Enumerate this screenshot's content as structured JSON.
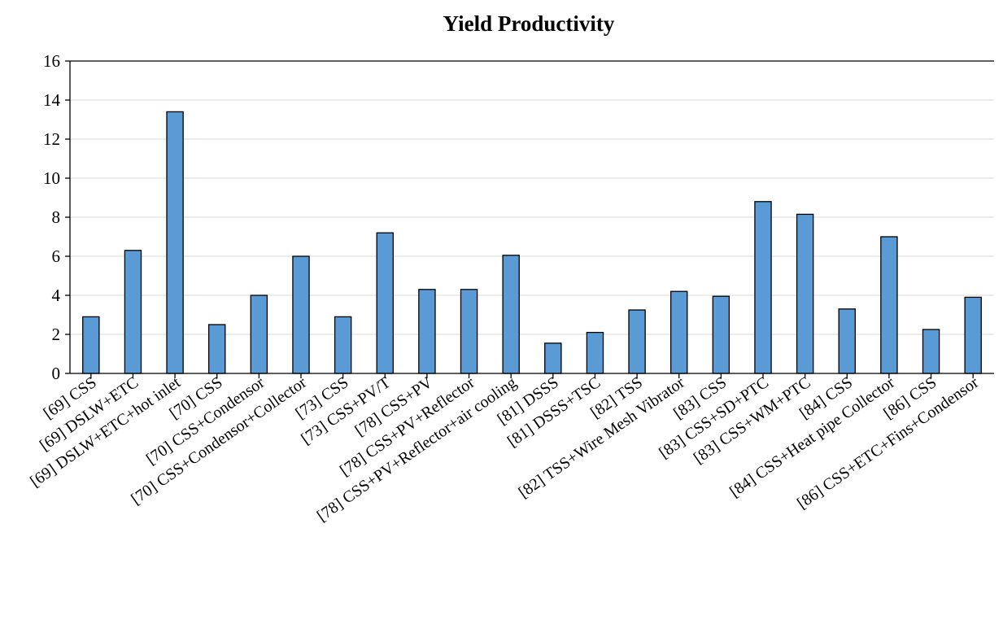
{
  "chart_data": {
    "type": "bar",
    "title": "Yield Productivity",
    "xlabel": "",
    "ylabel": "",
    "ylim": [
      0,
      16
    ],
    "yticks": [
      0,
      2,
      4,
      6,
      8,
      10,
      12,
      14,
      16
    ],
    "grid": "horizontal",
    "legend": "none",
    "bar_color": "#5b9bd5",
    "categories": [
      "[69] CSS",
      "[69] DSLW+ETC",
      "[69] DSLW+ETC+hot inlet",
      "[70] CSS",
      "[70] CSS+Condensor",
      "[70] CSS+Condensor+Collector",
      "[73] CSS",
      "[73] CSS+PV/T",
      "[78] CSS+PV",
      "[78] CSS+PV+Reflector",
      "[78] CSS+PV+Reflector+air cooling",
      "[81] DSSS",
      "[81] DSSS+TSC",
      "[82] TSS",
      "[82] TSS+Wire Mesh Vibrator",
      "[83] CSS",
      "[83] CSS+SD+PTC",
      "[83] CSS+WM+PTC",
      "[84] CSS",
      "[84] CSS+Heat pipe Collector",
      "[86] CSS",
      "[86] CSS+ETC+Fins+Condensor"
    ],
    "values": [
      2.9,
      6.3,
      13.4,
      2.5,
      4.0,
      6.0,
      2.9,
      7.2,
      4.3,
      4.3,
      6.05,
      1.55,
      2.1,
      3.25,
      4.2,
      3.95,
      8.8,
      8.15,
      3.3,
      7.0,
      2.25,
      3.9
    ]
  }
}
